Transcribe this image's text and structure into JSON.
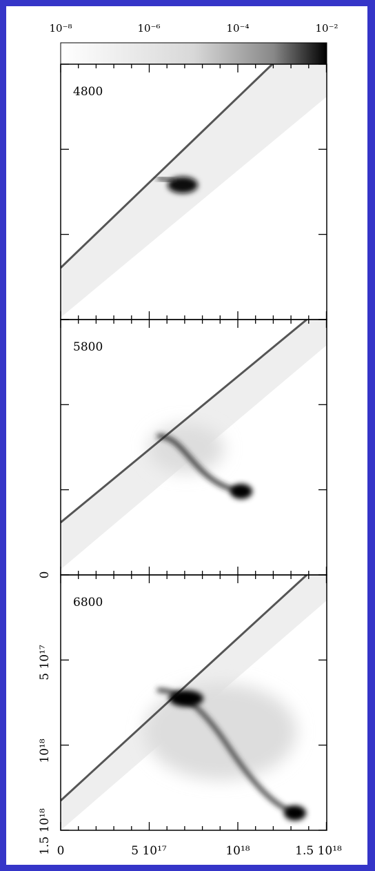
{
  "colorbar": {
    "tick_labels": [
      "10⁻⁸",
      "10⁻⁶",
      "10⁻⁴",
      "10⁻²"
    ]
  },
  "panels": [
    {
      "label": "4800"
    },
    {
      "label": "5800"
    },
    {
      "label": "6800"
    }
  ],
  "x_axis": {
    "tick_labels": [
      "0",
      "5 10¹⁷",
      "10¹⁸",
      "1.5 10¹⁸"
    ]
  },
  "y_axis": {
    "tick_labels": [
      "0",
      "5 10¹⁷",
      "10¹⁸",
      "1.5 10¹⁸"
    ]
  }
}
